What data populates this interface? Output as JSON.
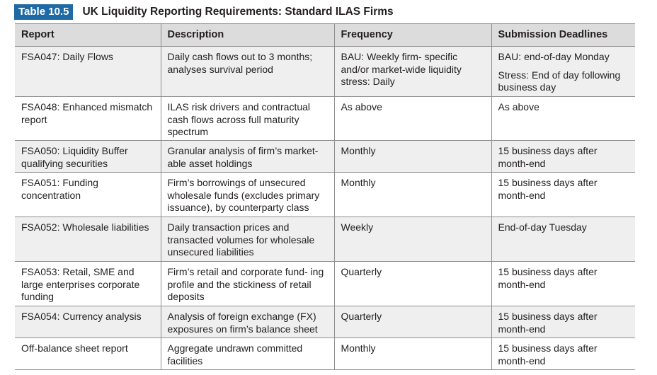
{
  "caption": {
    "number": "Table 10.5",
    "title": "UK Liquidity Reporting Requirements: Standard ILAS Firms"
  },
  "headers": {
    "report": "Report",
    "description": "Description",
    "frequency": "Frequency",
    "deadlines": "Submission Deadlines"
  },
  "rows": [
    {
      "report": "FSA047: Daily Flows",
      "description": "Daily cash flows out to 3 months; analyses survival period",
      "frequency": "BAU: Weekly firm- specific and/or market-wide liquidity stress: Daily",
      "deadline_1": "BAU: end-of-day Monday",
      "deadline_2": "Stress: End of day following business day"
    },
    {
      "report": "FSA048: Enhanced mismatch report",
      "description": "ILAS risk drivers and contractual cash flows across full maturity spectrum",
      "frequency": "As above",
      "deadline_1": "As above",
      "deadline_2": ""
    },
    {
      "report": "FSA050: Liquidity Buffer qualifying securities",
      "description": "Granular analysis of firm’s market- able asset holdings",
      "frequency": "Monthly",
      "deadline_1": "15 business days after month-end",
      "deadline_2": ""
    },
    {
      "report": "FSA051: Funding concentration",
      "description": "Firm’s borrowings of unsecured wholesale funds (excludes primary issuance), by counterparty class",
      "frequency": "Monthly",
      "deadline_1": "15 business days after month-end",
      "deadline_2": ""
    },
    {
      "report": "FSA052: Wholesale liabilities",
      "description": "Daily transaction prices and transacted volumes for wholesale unsecured liabilities",
      "frequency": "Weekly",
      "deadline_1": "End-of-day Tuesday",
      "deadline_2": ""
    },
    {
      "report": "FSA053: Retail, SME and large enterprises corporate funding",
      "description": "Firm’s retail and corporate fund- ing profile and the stickiness of retail deposits",
      "frequency": "Quarterly",
      "deadline_1": "15 business days after month-end",
      "deadline_2": ""
    },
    {
      "report": "FSA054: Currency analysis",
      "description": "Analysis of foreign exchange (FX) exposures on firm’s balance sheet",
      "frequency": "Quarterly",
      "deadline_1": "15 business days after month-end",
      "deadline_2": ""
    },
    {
      "report": "Off-balance sheet report",
      "description": "Aggregate undrawn committed facilities",
      "frequency": "Monthly",
      "deadline_1": "15 business days after month-end",
      "deadline_2": ""
    }
  ]
}
